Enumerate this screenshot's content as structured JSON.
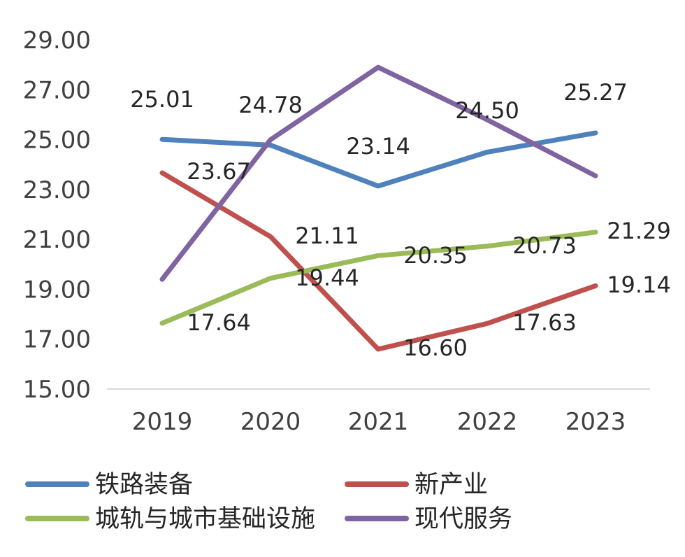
{
  "chart_data": {
    "type": "line",
    "title": "",
    "xlabel": "",
    "ylabel": "",
    "categories": [
      "2019",
      "2020",
      "2021",
      "2022",
      "2023"
    ],
    "ylim": [
      15,
      29
    ],
    "yticks": [
      "15.00",
      "17.00",
      "19.00",
      "21.00",
      "23.00",
      "25.00",
      "27.00",
      "29.00"
    ],
    "grid": false,
    "legend_position": "bottom",
    "series": [
      {
        "name": "铁路装备",
        "color": "#4F81BD",
        "values": [
          25.01,
          24.78,
          23.14,
          24.5,
          25.27
        ],
        "labels": [
          "25.01",
          "24.78",
          "23.14",
          "24.50",
          "25.27"
        ]
      },
      {
        "name": "新产业",
        "color": "#C0504D",
        "values": [
          23.67,
          21.11,
          16.6,
          17.63,
          19.14
        ],
        "labels": [
          "23.67",
          "21.11",
          "16.60",
          "17.63",
          "19.14"
        ]
      },
      {
        "name": "城轨与城市基础设施",
        "color": "#9BBB59",
        "values": [
          17.64,
          19.44,
          20.35,
          20.73,
          21.29
        ],
        "labels": [
          "17.64",
          "19.44",
          "20.35",
          "20.73",
          "21.29"
        ]
      },
      {
        "name": "现代服务",
        "color": "#8064A2",
        "values": [
          19.4,
          25.0,
          27.9,
          25.8,
          23.55
        ],
        "labels": []
      }
    ]
  }
}
